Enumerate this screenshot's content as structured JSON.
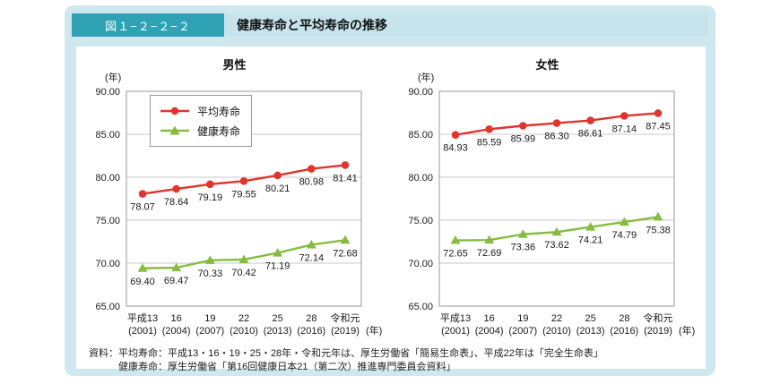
{
  "figure": {
    "label": "図１−２−２−２",
    "title": "健康寿命と平均寿命の推移"
  },
  "colors": {
    "card_bg": "#cfe8ef",
    "strip_bg": "#c7e4ec",
    "figure_label_bg": "#2fa3b5",
    "figure_label_text": "#ffffff",
    "panel_bg": "#ffffff",
    "grid": "#c9c9c9",
    "plot_border": "#999999",
    "average_red": "#e0342c",
    "healthy_green": "#86bd40"
  },
  "chart_data": [
    {
      "type": "line",
      "title": "男性",
      "y_axis_unit": "(年)",
      "x_axis_unit": "(年)",
      "ylim": [
        65,
        90
      ],
      "yticks": [
        65,
        70,
        75,
        80,
        85,
        90
      ],
      "ytick_labels": [
        "65.00",
        "70.00",
        "75.00",
        "80.00",
        "85.00",
        "90.00"
      ],
      "categories_era": [
        "平成13",
        "16",
        "19",
        "22",
        "25",
        "28",
        "令和元"
      ],
      "categories_year": [
        "(2001)",
        "(2004)",
        "(2007)",
        "(2010)",
        "(2013)",
        "(2016)",
        "(2019)"
      ],
      "grid": "horizontal",
      "legend_visible": true,
      "legend_position": "upper-left-inside",
      "series": [
        {
          "name": "平均寿命",
          "marker": "circle",
          "color": "#e0342c",
          "values": [
            78.07,
            78.64,
            79.19,
            79.55,
            80.21,
            80.98,
            81.41
          ],
          "labels": [
            "78.07",
            "78.64",
            "79.19",
            "79.55",
            "80.21",
            "80.98",
            "81.41"
          ]
        },
        {
          "name": "健康寿命",
          "marker": "triangle",
          "color": "#86bd40",
          "values": [
            69.4,
            69.47,
            70.33,
            70.42,
            71.19,
            72.14,
            72.68
          ],
          "labels": [
            "69.40",
            "69.47",
            "70.33",
            "70.42",
            "71.19",
            "72.14",
            "72.68"
          ]
        }
      ]
    },
    {
      "type": "line",
      "title": "女性",
      "y_axis_unit": "(年)",
      "x_axis_unit": "(年)",
      "ylim": [
        65,
        90
      ],
      "yticks": [
        65,
        70,
        75,
        80,
        85,
        90
      ],
      "ytick_labels": [
        "65.00",
        "70.00",
        "75.00",
        "80.00",
        "85.00",
        "90.00"
      ],
      "categories_era": [
        "平成13",
        "16",
        "19",
        "22",
        "25",
        "28",
        "令和元"
      ],
      "categories_year": [
        "(2001)",
        "(2004)",
        "(2007)",
        "(2010)",
        "(2013)",
        "(2016)",
        "(2019)"
      ],
      "grid": "horizontal",
      "legend_visible": false,
      "series": [
        {
          "name": "平均寿命",
          "marker": "circle",
          "color": "#e0342c",
          "values": [
            84.93,
            85.59,
            85.99,
            86.3,
            86.61,
            87.14,
            87.45
          ],
          "labels": [
            "84.93",
            "85.59",
            "85.99",
            "86.30",
            "86.61",
            "87.14",
            "87.45"
          ]
        },
        {
          "name": "健康寿命",
          "marker": "triangle",
          "color": "#86bd40",
          "values": [
            72.65,
            72.69,
            73.36,
            73.62,
            74.21,
            74.79,
            75.38
          ],
          "labels": [
            "72.65",
            "72.69",
            "73.36",
            "73.62",
            "74.21",
            "74.79",
            "75.38"
          ]
        }
      ]
    }
  ],
  "footer": {
    "source_line1": "資料：平均寿命：平成13・16・19・25・28年・令和元年は、厚生労働省「簡易生命表」、平成22年は「完全生命表」",
    "source_line2": "健康寿命：厚生労働省「第16回健康日本21（第二次）推進専門委員会資料」"
  }
}
